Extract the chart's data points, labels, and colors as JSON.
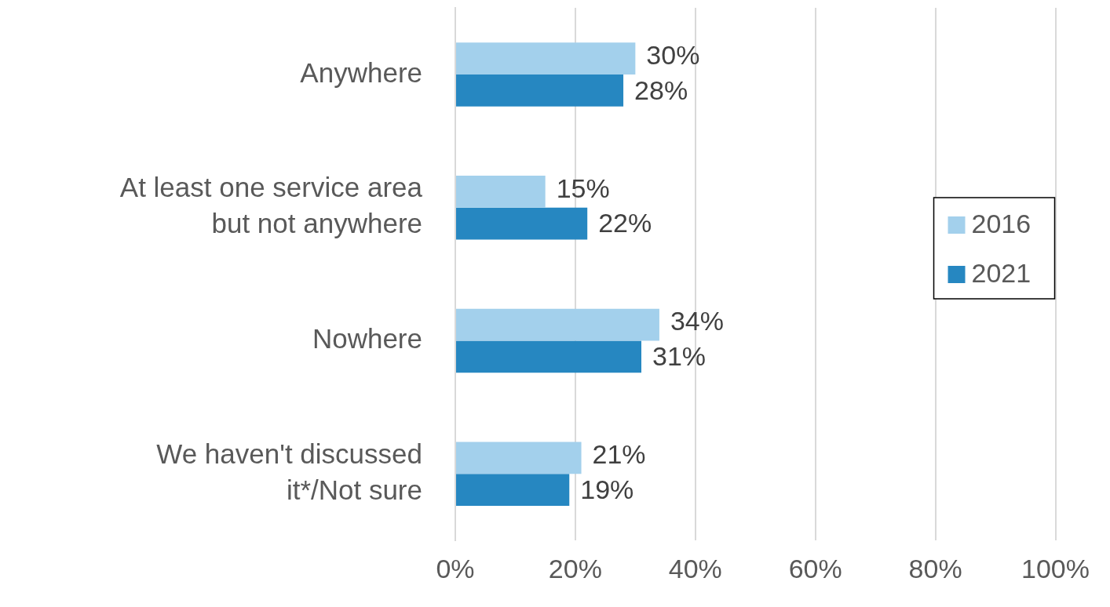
{
  "chart_data": {
    "type": "bar",
    "orientation": "horizontal",
    "categories": [
      "Anywhere",
      "At least one service area but not anywhere",
      "Nowhere",
      "We haven't discussed it*/Not sure"
    ],
    "series": [
      {
        "name": "2016",
        "color": "#a3d0ec",
        "values": [
          30,
          15,
          34,
          21
        ],
        "value_labels": [
          "30%",
          "15%",
          "34%",
          "21%"
        ]
      },
      {
        "name": "2021",
        "color": "#2687c1",
        "values": [
          28,
          22,
          31,
          19
        ],
        "value_labels": [
          "28%",
          "22%",
          "31%",
          "19%"
        ]
      }
    ],
    "xlim": [
      0,
      100
    ],
    "xticks": [
      {
        "value": 0,
        "label": "0%"
      },
      {
        "value": 20,
        "label": "20%"
      },
      {
        "value": 40,
        "label": "40%"
      },
      {
        "value": 60,
        "label": "60%"
      },
      {
        "value": 80,
        "label": "80%"
      },
      {
        "value": 100,
        "label": "100%"
      }
    ],
    "grid": "x",
    "legend": "right"
  }
}
